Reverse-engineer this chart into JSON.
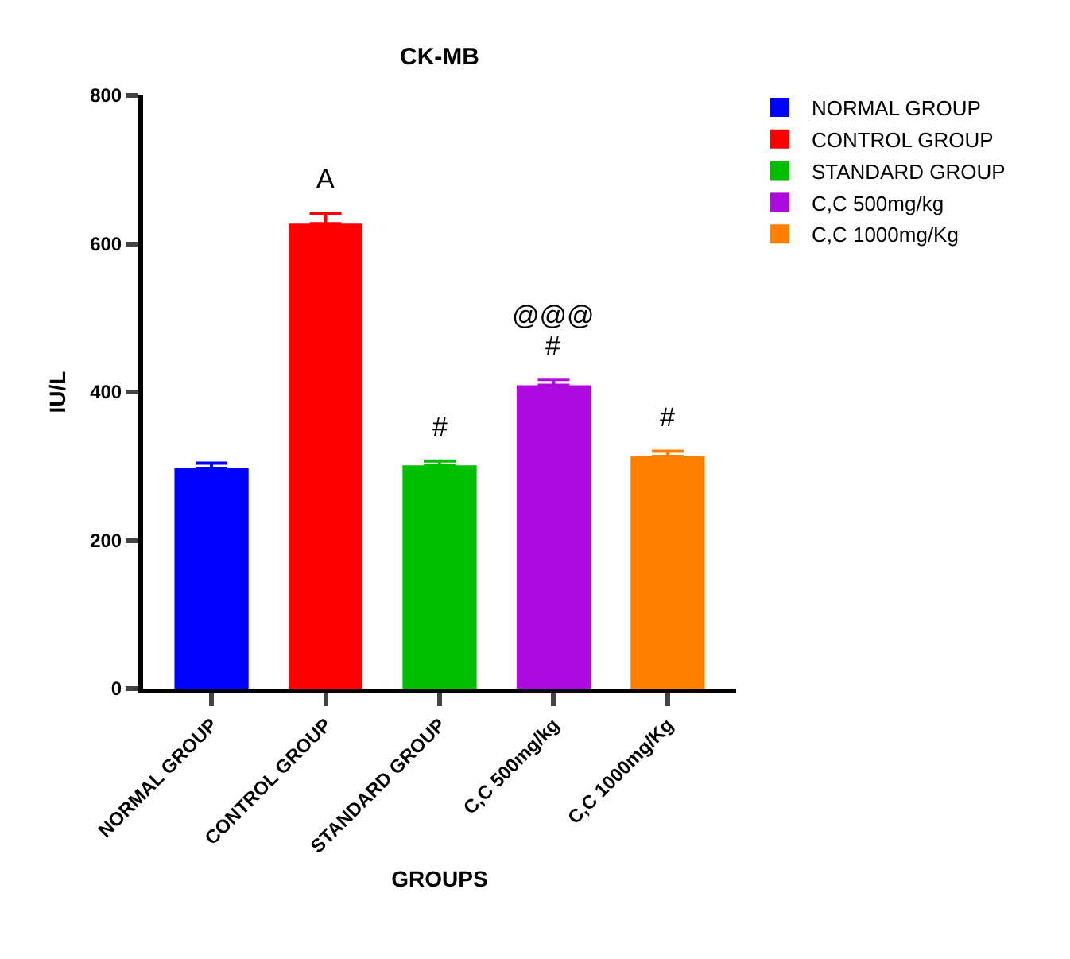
{
  "chart_data": {
    "type": "bar",
    "title": "CK-MB",
    "xlabel": "GROUPS",
    "ylabel": "IU/L",
    "categories": [
      "NORMAL GROUP",
      "CONTROL GROUP",
      "STANDARD GROUP",
      "C,C 500mg/kg",
      "C,C 1000mg/Kg"
    ],
    "series": [
      {
        "name": "NORMAL GROUP",
        "color": "#0000ff",
        "values": [
          297,
          null,
          null,
          null,
          null
        ],
        "errors": [
          7,
          null,
          null,
          null,
          null
        ]
      },
      {
        "name": "CONTROL GROUP",
        "color": "#ff0000",
        "values": [
          null,
          627,
          null,
          null,
          null
        ],
        "errors": [
          null,
          14,
          null,
          null,
          null
        ]
      },
      {
        "name": "STANDARD GROUP",
        "color": "#00bf00",
        "values": [
          null,
          null,
          301,
          null,
          null
        ],
        "errors": [
          null,
          null,
          6,
          null,
          null
        ]
      },
      {
        "name": "C,C 500mg/kg",
        "color": "#ad0ae0",
        "values": [
          null,
          null,
          null,
          409,
          null
        ],
        "errors": [
          null,
          null,
          null,
          8,
          null
        ]
      },
      {
        "name": "C,C 1000mg/Kg",
        "color": "#ff8000",
        "values": [
          null,
          null,
          null,
          null,
          313
        ],
        "errors": [
          null,
          null,
          null,
          null,
          7
        ]
      }
    ],
    "ylim": [
      0,
      800
    ],
    "yticks": [
      0,
      200,
      400,
      600,
      800
    ],
    "grid": false,
    "legend": "top right",
    "annotations": [
      {
        "text": "A",
        "x": "CONTROL GROUP",
        "y": 627
      },
      {
        "text": "#",
        "x": "STANDARD GROUP",
        "y": 301
      },
      {
        "text": "@@@",
        "x": "C,C 500mg/kg",
        "y": 409
      },
      {
        "text": "#",
        "x": "C,C 500mg/kg",
        "y": 409
      },
      {
        "text": "#",
        "x": "C,C 1000mg/Kg",
        "y": 313
      }
    ]
  }
}
